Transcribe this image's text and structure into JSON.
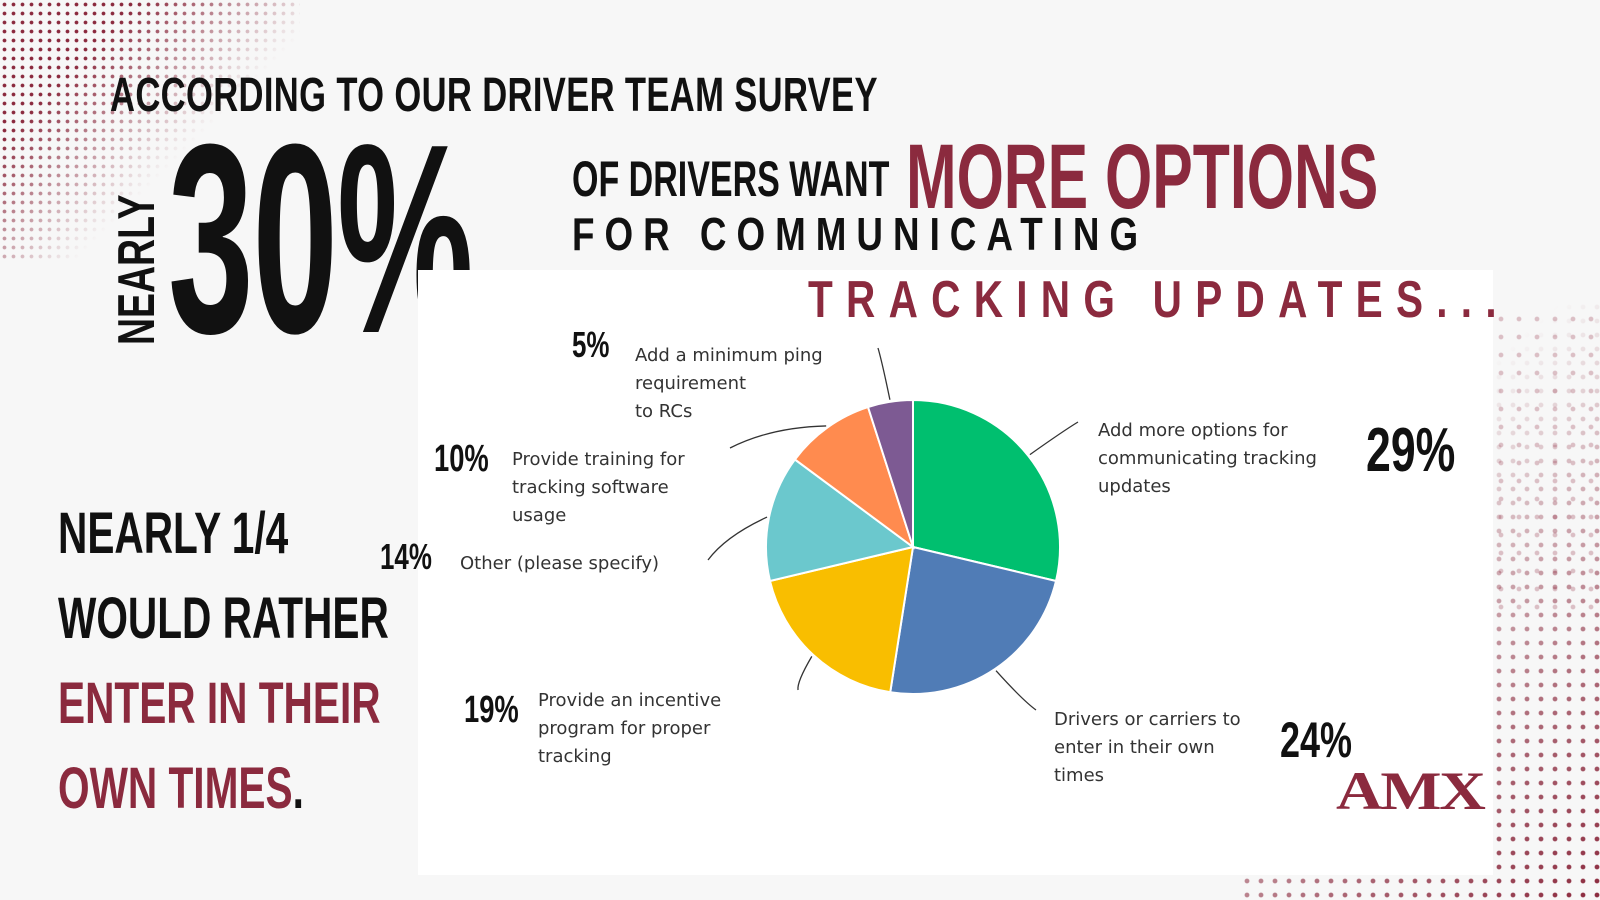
{
  "headline": {
    "survey_line": "ACCORDING TO OUR DRIVER TEAM SURVEY",
    "nearly": "NEARLY",
    "big_percent": "30%",
    "drivers_want": "OF DRIVERS WANT",
    "more_options": "MORE OPTIONS",
    "for_communicating": "FOR COMMUNICATING",
    "tracking_updates": "TRACKING UPDATES..."
  },
  "side_text": {
    "line1": "NEARLY 1/4",
    "line2": "WOULD RATHER",
    "line3": "ENTER IN THEIR",
    "line4a": "OWN TIMES",
    "line4b": "."
  },
  "logo": {
    "text": "AMX"
  },
  "colors": {
    "maroon": "#8b2a3e",
    "green": "#00bf6f",
    "blue": "#507cb6",
    "yellow": "#f9be00",
    "teal": "#6bc8cd",
    "orange": "#ff8b4f",
    "purple": "#7d5a93"
  },
  "chart_data": {
    "type": "pie",
    "series": [
      {
        "label": "Add more options for communicating tracking updates",
        "label_lines": [
          "Add more options for",
          "communicating tracking",
          "updates"
        ],
        "pct_text": "29%",
        "value": 29,
        "color": "#00bf6f"
      },
      {
        "label": "Drivers or carriers to enter in their own times",
        "label_lines": [
          "Drivers or carriers to",
          "enter in their own",
          "times"
        ],
        "pct_text": "24%",
        "value": 24,
        "color": "#507cb6"
      },
      {
        "label": "Provide an incentive program for proper tracking",
        "label_lines": [
          "Provide an incentive",
          "program for proper",
          "tracking"
        ],
        "pct_text": "19%",
        "value": 19,
        "color": "#f9be00"
      },
      {
        "label": "Other (please specify)",
        "label_lines": [
          "Other (please specify)"
        ],
        "pct_text": "14%",
        "value": 14,
        "color": "#6bc8cd"
      },
      {
        "label": "Provide training for tracking software usage",
        "label_lines": [
          "Provide training for",
          "tracking software",
          "usage"
        ],
        "pct_text": "10%",
        "value": 10,
        "color": "#ff8b4f"
      },
      {
        "label": "Add a minimum ping requirement to RCs",
        "label_lines": [
          "Add a minimum ping",
          "requirement",
          "to RCs"
        ],
        "pct_text": "5%",
        "value": 5,
        "color": "#7d5a93"
      }
    ]
  }
}
